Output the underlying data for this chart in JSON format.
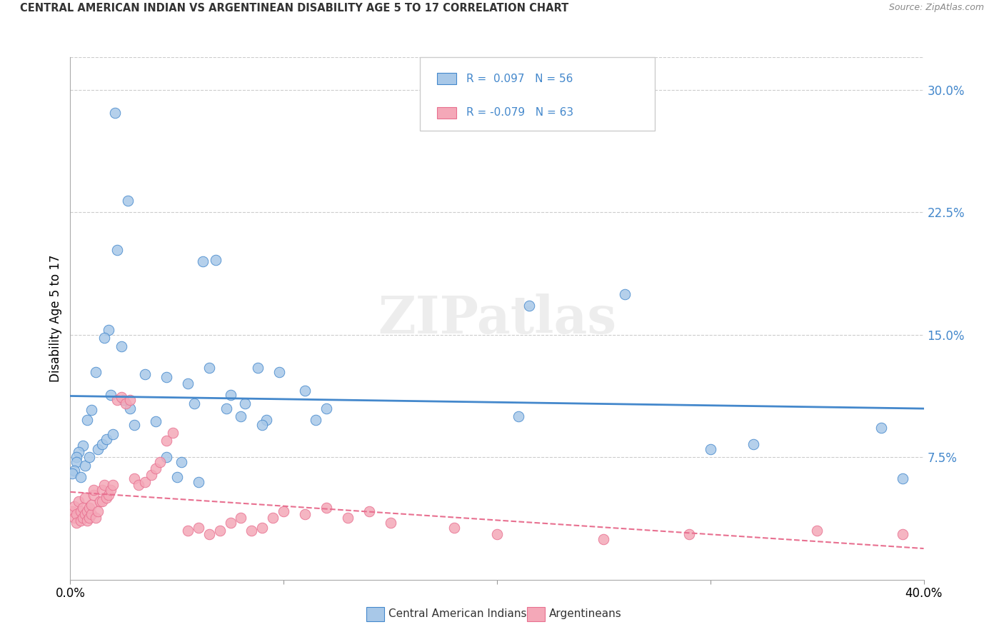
{
  "title": "CENTRAL AMERICAN INDIAN VS ARGENTINEAN DISABILITY AGE 5 TO 17 CORRELATION CHART",
  "source": "Source: ZipAtlas.com",
  "ylabel": "Disability Age 5 to 17",
  "yticks": [
    0.075,
    0.15,
    0.225,
    0.3
  ],
  "ytick_labels": [
    "7.5%",
    "15.0%",
    "22.5%",
    "30.0%"
  ],
  "xlim": [
    0.0,
    0.4
  ],
  "ylim": [
    0.0,
    0.32
  ],
  "legend_r1": "R =  0.097",
  "legend_n1": "N = 56",
  "legend_r2": "R = -0.079",
  "legend_n2": "N = 63",
  "legend_label1": "Central American Indians",
  "legend_label2": "Argentineans",
  "color_blue": "#a8c8e8",
  "color_pink": "#f4a8b8",
  "line_color_blue": "#4488cc",
  "line_color_pink": "#e87090",
  "watermark": "ZIPatlas",
  "blue_x": [
    0.021,
    0.027,
    0.022,
    0.024,
    0.018,
    0.016,
    0.012,
    0.019,
    0.025,
    0.01,
    0.008,
    0.006,
    0.004,
    0.003,
    0.003,
    0.002,
    0.001,
    0.028,
    0.035,
    0.045,
    0.055,
    0.058,
    0.062,
    0.068,
    0.075,
    0.082,
    0.088,
    0.092,
    0.098,
    0.11,
    0.115,
    0.12,
    0.045,
    0.052,
    0.065,
    0.073,
    0.08,
    0.09,
    0.21,
    0.215,
    0.26,
    0.3,
    0.32,
    0.38,
    0.39,
    0.005,
    0.007,
    0.009,
    0.013,
    0.015,
    0.017,
    0.02,
    0.03,
    0.04,
    0.05,
    0.06
  ],
  "blue_y": [
    0.286,
    0.232,
    0.202,
    0.143,
    0.153,
    0.148,
    0.127,
    0.113,
    0.11,
    0.104,
    0.098,
    0.082,
    0.078,
    0.075,
    0.072,
    0.067,
    0.065,
    0.105,
    0.126,
    0.124,
    0.12,
    0.108,
    0.195,
    0.196,
    0.113,
    0.108,
    0.13,
    0.098,
    0.127,
    0.116,
    0.098,
    0.105,
    0.075,
    0.072,
    0.13,
    0.105,
    0.1,
    0.095,
    0.1,
    0.168,
    0.175,
    0.08,
    0.083,
    0.093,
    0.062,
    0.063,
    0.07,
    0.075,
    0.08,
    0.083,
    0.086,
    0.089,
    0.095,
    0.097,
    0.063,
    0.06
  ],
  "pink_x": [
    0.001,
    0.002,
    0.002,
    0.003,
    0.003,
    0.004,
    0.005,
    0.005,
    0.006,
    0.006,
    0.007,
    0.007,
    0.008,
    0.008,
    0.009,
    0.009,
    0.01,
    0.01,
    0.011,
    0.011,
    0.012,
    0.013,
    0.014,
    0.015,
    0.015,
    0.016,
    0.017,
    0.018,
    0.019,
    0.02,
    0.022,
    0.024,
    0.026,
    0.028,
    0.03,
    0.032,
    0.035,
    0.038,
    0.04,
    0.042,
    0.045,
    0.048,
    0.055,
    0.06,
    0.065,
    0.07,
    0.075,
    0.08,
    0.085,
    0.09,
    0.095,
    0.1,
    0.11,
    0.12,
    0.13,
    0.14,
    0.15,
    0.18,
    0.2,
    0.25,
    0.29,
    0.35,
    0.39
  ],
  "pink_y": [
    0.042,
    0.045,
    0.038,
    0.04,
    0.035,
    0.048,
    0.036,
    0.042,
    0.038,
    0.044,
    0.04,
    0.05,
    0.036,
    0.042,
    0.038,
    0.044,
    0.04,
    0.046,
    0.052,
    0.055,
    0.038,
    0.042,
    0.048,
    0.048,
    0.055,
    0.058,
    0.05,
    0.052,
    0.055,
    0.058,
    0.11,
    0.112,
    0.108,
    0.11,
    0.062,
    0.058,
    0.06,
    0.064,
    0.068,
    0.072,
    0.085,
    0.09,
    0.03,
    0.032,
    0.028,
    0.03,
    0.035,
    0.038,
    0.03,
    0.032,
    0.038,
    0.042,
    0.04,
    0.044,
    0.038,
    0.042,
    0.035,
    0.032,
    0.028,
    0.025,
    0.028,
    0.03,
    0.028
  ]
}
